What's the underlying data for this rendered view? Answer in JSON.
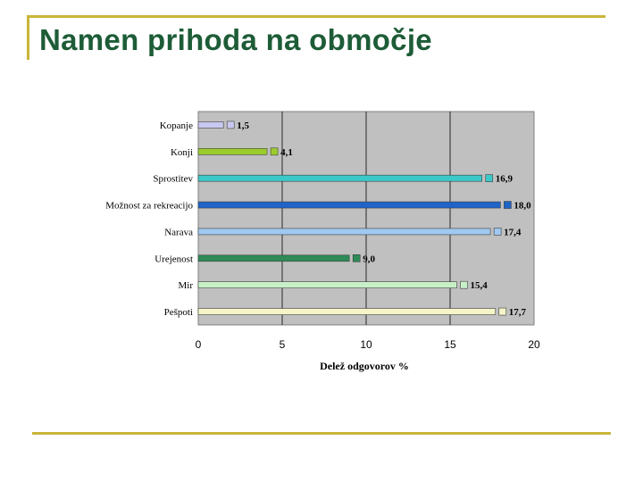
{
  "slide": {
    "title": "Namen prihoda na območje"
  },
  "chart_data": {
    "type": "bar",
    "orientation": "horizontal",
    "categories": [
      "Kopanje",
      "Konji",
      "Sprostitev",
      "Možnost za rekreacijo",
      "Narava",
      "Urejenost",
      "Mir",
      "Pešpoti"
    ],
    "values": [
      1.5,
      4.1,
      16.9,
      18.0,
      17.4,
      9.0,
      15.4,
      17.7
    ],
    "value_labels": [
      "1,5",
      "4,1",
      "16,9",
      "18,0",
      "17,4",
      "9,0",
      "15,4",
      "17,7"
    ],
    "colors": [
      "#c8c8f0",
      "#9ccc2c",
      "#3cc8c8",
      "#1f64c8",
      "#a0c8f0",
      "#2e8b57",
      "#c8f0c8",
      "#f5f5c8"
    ],
    "xlabel": "Delež odgovorov %",
    "xlim": [
      0,
      20
    ],
    "xticks": [
      "0",
      "5",
      "10",
      "15",
      "20"
    ],
    "plot_background": "#c0c0c0",
    "grid": true,
    "legend": "none"
  }
}
